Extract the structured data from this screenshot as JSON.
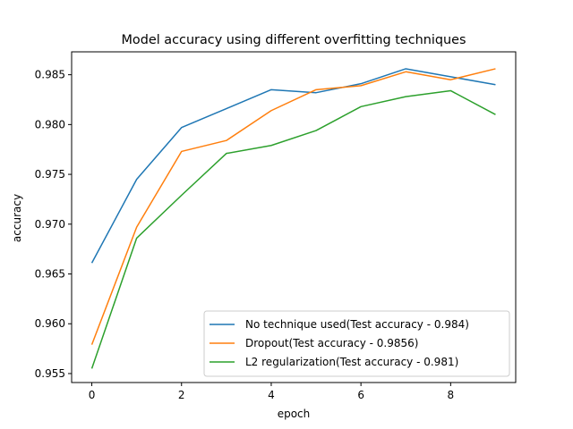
{
  "chart_data": {
    "type": "line",
    "title": "Model accuracy using different overfitting techniques",
    "xlabel": "epoch",
    "ylabel": "accuracy",
    "xlim": [
      -0.45,
      9.45
    ],
    "ylim": [
      0.9541,
      0.9873
    ],
    "xticks": [
      0,
      2,
      4,
      6,
      8
    ],
    "xtick_labels": [
      "0",
      "2",
      "4",
      "6",
      "8"
    ],
    "yticks": [
      0.955,
      0.96,
      0.965,
      0.97,
      0.975,
      0.98,
      0.985
    ],
    "ytick_labels": [
      "0.955",
      "0.960",
      "0.965",
      "0.970",
      "0.975",
      "0.980",
      "0.985"
    ],
    "grid": false,
    "legend_position": "lower-right",
    "x": [
      0,
      1,
      2,
      3,
      4,
      5,
      6,
      7,
      8,
      9
    ],
    "series": [
      {
        "name": "No technique used(Test accuracy - 0.984)",
        "color": "#1f77b4",
        "values": [
          0.9661,
          0.9745,
          0.9797,
          0.9816,
          0.9835,
          0.9832,
          0.9841,
          0.9856,
          0.9848,
          0.984
        ]
      },
      {
        "name": "Dropout(Test accuracy - 0.9856)",
        "color": "#ff7f0e",
        "values": [
          0.9579,
          0.9697,
          0.9773,
          0.9784,
          0.9814,
          0.9835,
          0.9839,
          0.9853,
          0.9845,
          0.9856
        ]
      },
      {
        "name": "L2 regularization(Test accuracy - 0.981)",
        "color": "#2ca02c",
        "values": [
          0.9555,
          0.9686,
          0.9729,
          0.9771,
          0.9779,
          0.9794,
          0.9818,
          0.9828,
          0.9834,
          0.981
        ]
      }
    ]
  }
}
